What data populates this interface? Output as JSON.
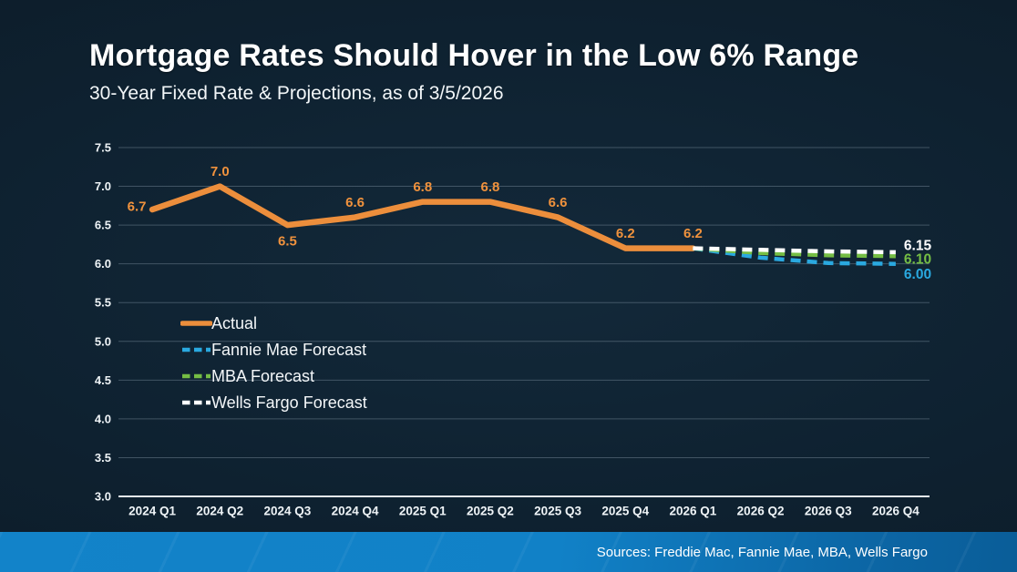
{
  "slide": {
    "title": "Mortgage Rates Should Hover in the Low 6% Range",
    "subtitle": "30-Year Fixed Rate & Projections, as of 3/5/2026",
    "sources": "Sources: Freddie Mac, Fannie Mae, MBA, Wells Fargo"
  },
  "colors": {
    "accent_orange": "#EC8E3C",
    "accent_blue": "#2AA9E0",
    "accent_green": "#75BE44",
    "forecast_white": "#FFFFFF",
    "footer_blue": "#1283C9",
    "gridline": "rgba(168,186,199,0.33)",
    "axis_line": "#E8EEF3",
    "axis_text": "#EFF4F7",
    "data_label_orange": "#F0923D"
  },
  "chart_data": {
    "type": "line",
    "title": "Mortgage Rates Should Hover in the Low 6% Range",
    "subtitle": "30-Year Fixed Rate & Projections, as of 3/5/2026",
    "categories": [
      "2024 Q1",
      "2024 Q2",
      "2024 Q3",
      "2024 Q4",
      "2025 Q1",
      "2025 Q2",
      "2025 Q3",
      "2025 Q4",
      "2026 Q1",
      "2026 Q2",
      "2026 Q3",
      "2026 Q4"
    ],
    "ylim": [
      3.0,
      7.5
    ],
    "yticks": [
      "3.0",
      "3.5",
      "4.0",
      "4.5",
      "5.0",
      "5.5",
      "6.0",
      "6.5",
      "7.0",
      "7.5"
    ],
    "grid": true,
    "legend_position": "middle-left",
    "series": [
      {
        "name": "Actual",
        "color": "#EC8E3C",
        "line_style": "solid",
        "values": [
          6.7,
          7.0,
          6.5,
          6.6,
          6.8,
          6.8,
          6.6,
          6.2,
          6.2,
          null,
          null,
          null
        ],
        "point_labels": [
          "6.7",
          "7.0",
          "6.5",
          "6.6",
          "6.8",
          "6.8",
          "6.6",
          "6.2",
          "6.2",
          null,
          null,
          null
        ]
      },
      {
        "name": "Fannie Mae Forecast",
        "color": "#2AA9E0",
        "line_style": "dashed",
        "values": [
          null,
          null,
          null,
          null,
          null,
          null,
          null,
          null,
          6.2,
          6.08,
          6.01,
          6.0
        ],
        "end_label": "6.00"
      },
      {
        "name": "MBA Forecast",
        "color": "#75BE44",
        "line_style": "dashed",
        "values": [
          null,
          null,
          null,
          null,
          null,
          null,
          null,
          null,
          6.2,
          6.14,
          6.11,
          6.1
        ],
        "end_label": "6.10"
      },
      {
        "name": "Wells Fargo Forecast",
        "color": "#FFFFFF",
        "line_style": "dashed",
        "values": [
          null,
          null,
          null,
          null,
          null,
          null,
          null,
          null,
          6.2,
          6.18,
          6.16,
          6.15
        ],
        "end_label": "6.15"
      }
    ]
  }
}
